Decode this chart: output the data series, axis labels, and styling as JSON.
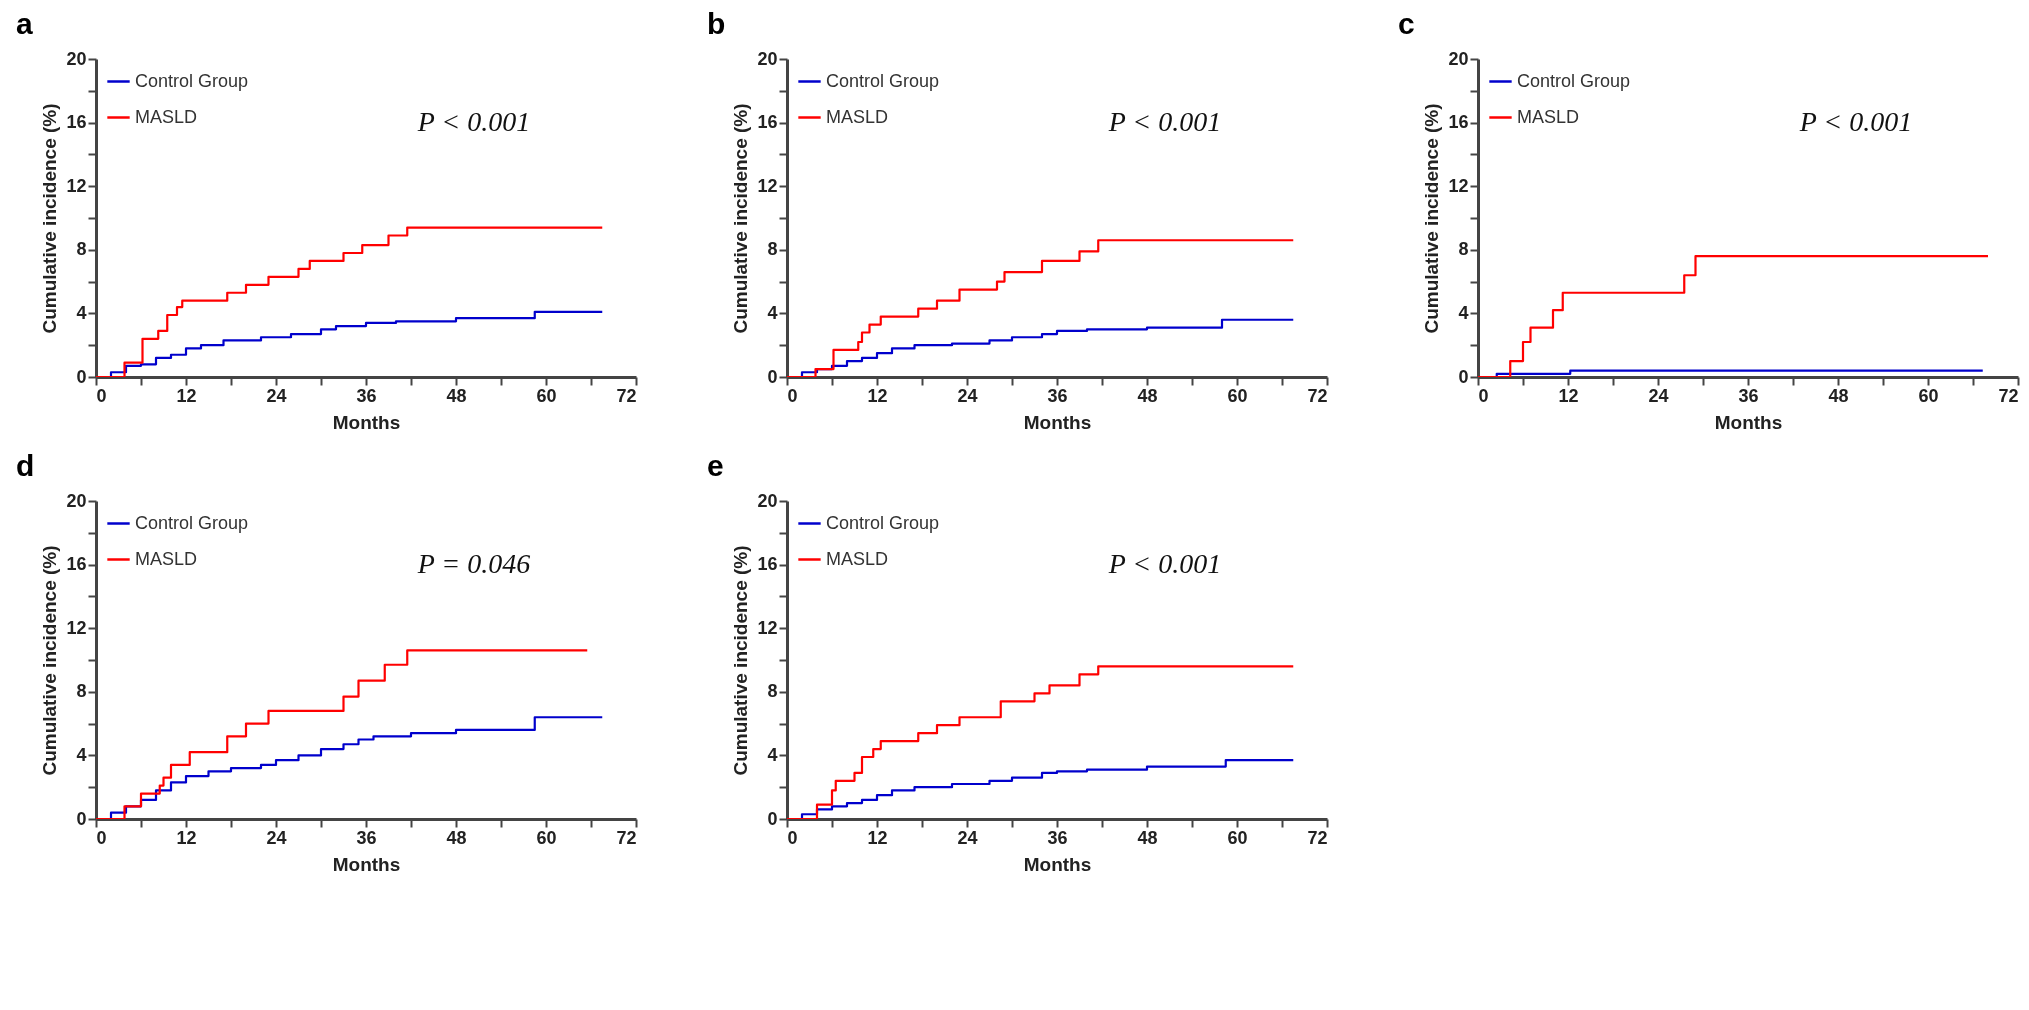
{
  "chart_data": [
    {
      "type": "step",
      "title": "a",
      "xlabel": "Months",
      "ylabel": "Cumulative incidence (%)",
      "xlim": [
        0,
        72
      ],
      "xticks": [
        0,
        {
          "value": 6,
          "label": null
        },
        12,
        {
          "value": 18,
          "label": null
        },
        24,
        {
          "value": 30,
          "label": null
        },
        36,
        {
          "value": 42,
          "label": null
        },
        48,
        {
          "value": 54,
          "label": null
        },
        60,
        {
          "value": 66,
          "label": null
        },
        72
      ],
      "ylim": [
        0,
        20
      ],
      "yticks": [
        0,
        {
          "value": 2,
          "label": null
        },
        4,
        {
          "value": 6,
          "label": null
        },
        8,
        {
          "value": 10,
          "label": null
        },
        12,
        {
          "value": 14,
          "label": null
        },
        16,
        {
          "value": 18,
          "label": null
        },
        20
      ],
      "grid": false,
      "legend": "top left",
      "annotations": [
        "P < 0.001"
      ],
      "series": [
        {
          "name": "Control Group",
          "color": "#0000cc",
          "x": [
            0,
            2,
            4,
            6,
            8,
            10,
            12,
            14,
            17,
            22,
            26,
            30,
            32,
            36,
            40,
            48,
            58.5,
            67.5
          ],
          "values": [
            0,
            0.3,
            0.7,
            0.8,
            1.2,
            1.4,
            1.8,
            2.0,
            2.3,
            2.5,
            2.7,
            3.0,
            3.2,
            3.4,
            3.5,
            3.7,
            4.1,
            4.1
          ]
        },
        {
          "name": "MASLD",
          "color": "#ff0000",
          "x": [
            0,
            3.8,
            6.2,
            8.3,
            9.5,
            10.8,
            11.5,
            17.5,
            20,
            23,
            27,
            28.5,
            33,
            35.5,
            39,
            41.5,
            67.5
          ],
          "values": [
            0,
            0.9,
            2.4,
            2.9,
            3.9,
            4.4,
            4.8,
            5.3,
            5.8,
            6.3,
            6.8,
            7.3,
            7.8,
            8.3,
            8.9,
            9.4,
            9.4
          ]
        }
      ]
    },
    {
      "type": "step",
      "title": "b",
      "xlabel": "Months",
      "ylabel": "Cumulative incidence (%)",
      "xlim": [
        0,
        72
      ],
      "xticks": [
        0,
        {
          "value": 6,
          "label": null
        },
        12,
        {
          "value": 18,
          "label": null
        },
        24,
        {
          "value": 30,
          "label": null
        },
        36,
        {
          "value": 42,
          "label": null
        },
        48,
        {
          "value": 54,
          "label": null
        },
        60,
        {
          "value": 66,
          "label": null
        },
        72
      ],
      "ylim": [
        0,
        20
      ],
      "yticks": [
        0,
        {
          "value": 2,
          "label": null
        },
        4,
        {
          "value": 6,
          "label": null
        },
        8,
        {
          "value": 10,
          "label": null
        },
        12,
        {
          "value": 14,
          "label": null
        },
        16,
        {
          "value": 18,
          "label": null
        },
        20
      ],
      "grid": false,
      "legend": "top left",
      "annotations": [
        "P < 0.001"
      ],
      "series": [
        {
          "name": "Control Group",
          "color": "#0000cc",
          "x": [
            0,
            2,
            4,
            6,
            8,
            10,
            12,
            14,
            17,
            22,
            27,
            30,
            34,
            36,
            40,
            48,
            58,
            67.5
          ],
          "values": [
            0,
            0.3,
            0.5,
            0.7,
            1.0,
            1.2,
            1.5,
            1.8,
            2.0,
            2.1,
            2.3,
            2.5,
            2.7,
            2.9,
            3.0,
            3.1,
            3.6,
            3.6
          ]
        },
        {
          "name": "MASLD",
          "color": "#ff0000",
          "x": [
            0,
            3.8,
            6.2,
            9.5,
            10,
            11,
            12.5,
            17.5,
            20,
            23,
            28,
            29,
            34,
            39,
            41.5,
            67.5
          ],
          "values": [
            0,
            0.5,
            1.7,
            2.2,
            2.8,
            3.3,
            3.8,
            4.3,
            4.8,
            5.5,
            6.0,
            6.6,
            7.3,
            7.9,
            8.6,
            8.6
          ]
        }
      ]
    },
    {
      "type": "step",
      "title": "c",
      "xlabel": "Months",
      "ylabel": "Cumulative incidence (%)",
      "xlim": [
        0,
        72
      ],
      "xticks": [
        0,
        {
          "value": 6,
          "label": null
        },
        12,
        {
          "value": 18,
          "label": null
        },
        24,
        {
          "value": 30,
          "label": null
        },
        36,
        {
          "value": 42,
          "label": null
        },
        48,
        {
          "value": 54,
          "label": null
        },
        60,
        {
          "value": 66,
          "label": null
        },
        72
      ],
      "ylim": [
        0,
        20
      ],
      "yticks": [
        0,
        {
          "value": 2,
          "label": null
        },
        4,
        {
          "value": 6,
          "label": null
        },
        8,
        {
          "value": 10,
          "label": null
        },
        12,
        {
          "value": 14,
          "label": null
        },
        16,
        {
          "value": 18,
          "label": null
        },
        20
      ],
      "grid": false,
      "legend": "top left",
      "annotations": [
        "P < 0.001"
      ],
      "series": [
        {
          "name": "Control Group",
          "color": "#0000cc",
          "x": [
            0,
            2.5,
            12.3,
            67.3
          ],
          "values": [
            0,
            0.2,
            0.4,
            0.4
          ]
        },
        {
          "name": "MASLD",
          "color": "#ff0000",
          "x": [
            0,
            4.3,
            6,
            7,
            10,
            11.3,
            27.5,
            29,
            68
          ],
          "values": [
            0,
            1.0,
            2.2,
            3.1,
            4.2,
            5.3,
            6.4,
            7.6,
            7.6
          ]
        }
      ]
    },
    {
      "type": "step",
      "title": "d",
      "xlabel": "Months",
      "ylabel": "Cumulative incidence (%)",
      "xlim": [
        0,
        72
      ],
      "xticks": [
        0,
        {
          "value": 6,
          "label": null
        },
        12,
        {
          "value": 18,
          "label": null
        },
        24,
        {
          "value": 30,
          "label": null
        },
        36,
        {
          "value": 42,
          "label": null
        },
        48,
        {
          "value": 54,
          "label": null
        },
        60,
        {
          "value": 66,
          "label": null
        },
        72
      ],
      "ylim": [
        0,
        20
      ],
      "yticks": [
        0,
        {
          "value": 2,
          "label": null
        },
        4,
        {
          "value": 6,
          "label": null
        },
        8,
        {
          "value": 10,
          "label": null
        },
        12,
        {
          "value": 14,
          "label": null
        },
        16,
        {
          "value": 18,
          "label": null
        },
        20
      ],
      "grid": false,
      "legend": "top left",
      "annotations": [
        "P = 0.046"
      ],
      "series": [
        {
          "name": "Control Group",
          "color": "#0000cc",
          "x": [
            0,
            2,
            4,
            6,
            8,
            10,
            12,
            15,
            18,
            22,
            24,
            27,
            30,
            33,
            35,
            37,
            42,
            48,
            58.5,
            67.5
          ],
          "values": [
            0,
            0.4,
            0.8,
            1.2,
            1.8,
            2.3,
            2.7,
            3.0,
            3.2,
            3.4,
            3.7,
            4.0,
            4.4,
            4.7,
            5.0,
            5.2,
            5.4,
            5.6,
            6.4,
            6.4
          ]
        },
        {
          "name": "MASLD",
          "color": "#ff0000",
          "x": [
            0,
            3.8,
            6,
            8.5,
            9,
            10,
            12.5,
            17.5,
            20,
            23,
            33,
            35,
            38.5,
            41.5,
            65.5
          ],
          "values": [
            0,
            0.8,
            1.6,
            2.1,
            2.6,
            3.4,
            4.2,
            5.2,
            6.0,
            6.8,
            7.7,
            8.7,
            9.7,
            10.6,
            10.6
          ]
        }
      ]
    },
    {
      "type": "step",
      "title": "e",
      "xlabel": "Months",
      "ylabel": "Cumulative incidence (%)",
      "xlim": [
        0,
        72
      ],
      "xticks": [
        0,
        {
          "value": 6,
          "label": null
        },
        12,
        {
          "value": 18,
          "label": null
        },
        24,
        {
          "value": 30,
          "label": null
        },
        36,
        {
          "value": 42,
          "label": null
        },
        48,
        {
          "value": 54,
          "label": null
        },
        60,
        {
          "value": 66,
          "label": null
        },
        72
      ],
      "ylim": [
        0,
        20
      ],
      "yticks": [
        0,
        {
          "value": 2,
          "label": null
        },
        4,
        {
          "value": 6,
          "label": null
        },
        8,
        {
          "value": 10,
          "label": null
        },
        12,
        {
          "value": 14,
          "label": null
        },
        16,
        {
          "value": 18,
          "label": null
        },
        20
      ],
      "grid": false,
      "legend": "top left",
      "annotations": [
        "P < 0.001"
      ],
      "series": [
        {
          "name": "Control Group",
          "color": "#0000cc",
          "x": [
            0,
            2,
            4,
            6,
            8,
            10,
            12,
            14,
            17,
            22,
            27,
            30,
            34,
            36,
            40,
            48,
            58.5,
            67.5
          ],
          "values": [
            0,
            0.3,
            0.6,
            0.8,
            1.0,
            1.2,
            1.5,
            1.8,
            2.0,
            2.2,
            2.4,
            2.6,
            2.9,
            3.0,
            3.1,
            3.3,
            3.7,
            3.7
          ]
        },
        {
          "name": "MASLD",
          "color": "#ff0000",
          "x": [
            0,
            4,
            6,
            6.5,
            9,
            10,
            11.5,
            12.5,
            17.5,
            20,
            23,
            28.5,
            33,
            35,
            39,
            41.5,
            67.5
          ],
          "values": [
            0,
            0.9,
            1.8,
            2.4,
            2.9,
            3.9,
            4.4,
            4.9,
            5.4,
            5.9,
            6.4,
            7.4,
            7.9,
            8.4,
            9.1,
            9.6,
            9.6
          ]
        }
      ]
    }
  ]
}
